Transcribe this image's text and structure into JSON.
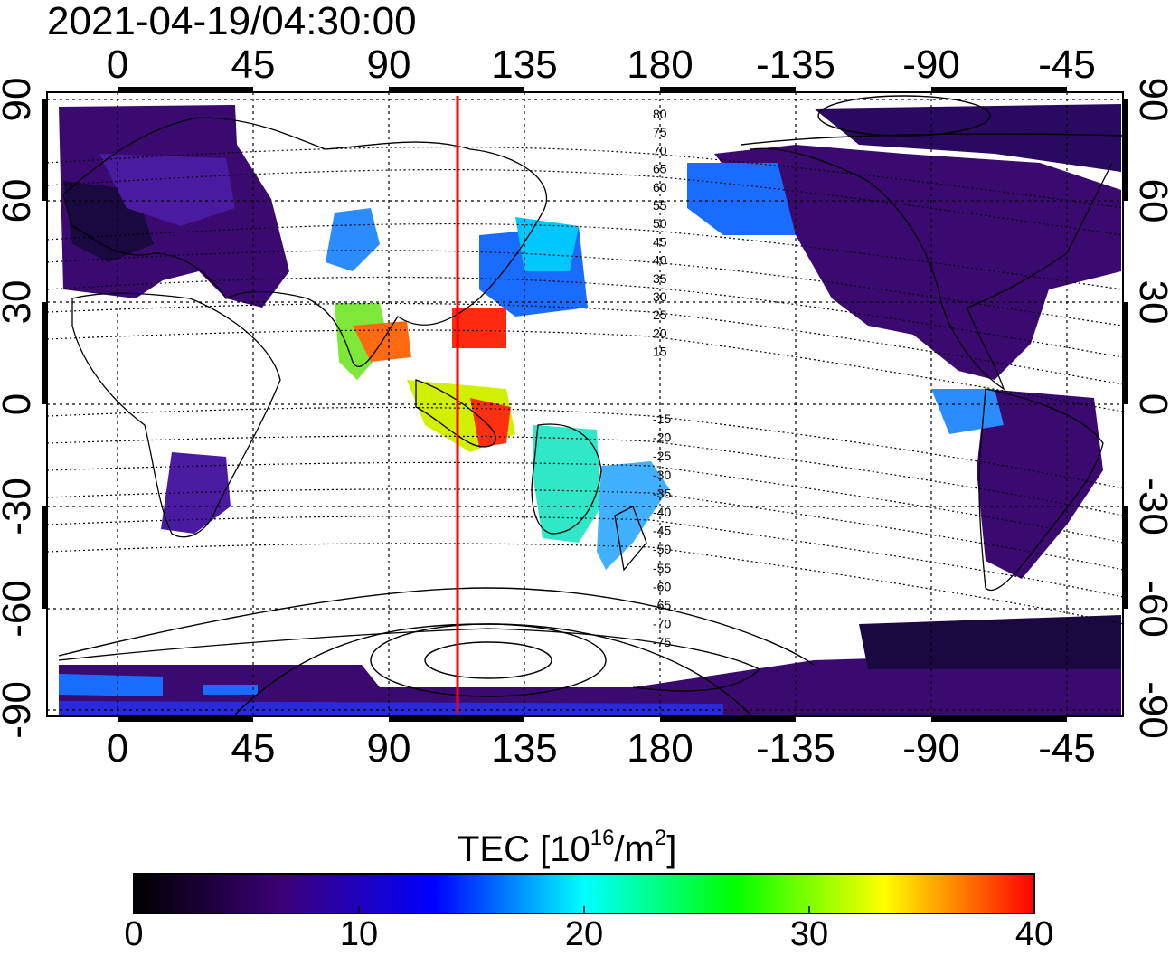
{
  "timestamp": "2021-04-19/04:30:00",
  "top_longitude_ticks": [
    "0",
    "45",
    "90",
    "135",
    "180",
    "-135",
    "-90",
    "-45"
  ],
  "bottom_longitude_ticks": [
    "0",
    "45",
    "90",
    "135",
    "180",
    "-135",
    "-90",
    "-45"
  ],
  "left_latitude_ticks": [
    "90",
    "60",
    "30",
    "0",
    "-30",
    "-60",
    "-90"
  ],
  "right_latitude_ticks": [
    "90",
    "60",
    "30",
    "0",
    "-30",
    "-60",
    "-90"
  ],
  "contour_labels_north": [
    "80",
    "75",
    "70",
    "65",
    "60",
    "55",
    "50",
    "45",
    "40",
    "35",
    "30",
    "25",
    "20",
    "15"
  ],
  "contour_labels_south": [
    "-15",
    "-20",
    "-25",
    "-30",
    "-35",
    "-40",
    "-45",
    "-50",
    "-55",
    "-60",
    "-65",
    "-70",
    "-75"
  ],
  "colorbar": {
    "label_prefix": "TEC  [10",
    "label_exp": "16",
    "label_mid": "/m",
    "label_exp2": "2",
    "label_suffix": "]",
    "ticks": [
      "0",
      "10",
      "20",
      "30",
      "40"
    ],
    "range": [
      0,
      40
    ],
    "colors": [
      "#000000",
      "#3c0078",
      "#0000ff",
      "#00ffff",
      "#00ff00",
      "#ffff00",
      "#ff0000"
    ]
  },
  "subsolar_meridian_color": "#ff0000"
}
